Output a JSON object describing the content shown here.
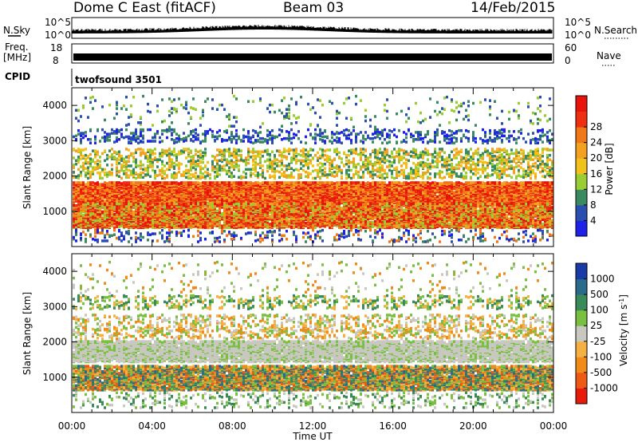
{
  "header": {
    "station": "Dome C East (fitACF)",
    "beam": "Beam 03",
    "date": "14/Feb/2015"
  },
  "panels": {
    "nsky": {
      "label": "N.Sky",
      "ticks_left": [
        "10^5",
        "10^0"
      ],
      "ticks_right": [
        "10^5",
        "10^0"
      ],
      "right_label": "N.Search"
    },
    "freq": {
      "label_top": "Freq.",
      "label_bottom": "[MHz]",
      "ticks_left": [
        "18",
        "8"
      ],
      "ticks_right": [
        "60",
        "0"
      ],
      "right_label": "Nave"
    },
    "cpid": {
      "label": "CPID",
      "value": "twofsound 3501"
    }
  },
  "axes": {
    "xlabel": "Time UT",
    "xticks": [
      "00:00",
      "04:00",
      "08:00",
      "12:00",
      "16:00",
      "20:00",
      "00:00"
    ],
    "ylabel": "Slant Range [km]",
    "yticks": [
      "1000",
      "2000",
      "3000",
      "4000"
    ]
  },
  "chart_data": [
    {
      "type": "heatmap",
      "title": "",
      "ylabel": "Slant Range [km]",
      "xlabel": "",
      "xlim": [
        "00:00",
        "24:00"
      ],
      "ylim": [
        0,
        4500
      ],
      "colorbar": {
        "label": "Power [dB]",
        "ticks": [
          "4",
          "8",
          "12",
          "16",
          "20",
          "24",
          "28"
        ],
        "colors": [
          "#1e22e8",
          "#2a4fb0",
          "#3a8a5f",
          "#9acd32",
          "#f2c21a",
          "#f4a020",
          "#f07818",
          "#ee3010",
          "#e8140c"
        ]
      },
      "bands": [
        {
          "range_km": [
            1300,
            1800
          ],
          "level": "24-28 dB"
        },
        {
          "range_km": [
            600,
            1200
          ],
          "level": "20-28 dB"
        },
        {
          "range_km": [
            2000,
            2800
          ],
          "level": "12-20 dB"
        },
        {
          "range_km": [
            3000,
            3300
          ],
          "level": "4-12 dB"
        }
      ]
    },
    {
      "type": "heatmap",
      "title": "",
      "ylabel": "Slant Range [km]",
      "xlabel": "Time UT",
      "xlim": [
        "00:00",
        "24:00"
      ],
      "ylim": [
        0,
        4500
      ],
      "colorbar": {
        "label": "Velocity [m s^-1]",
        "ticks": [
          "1000",
          "500",
          "100",
          "25",
          "-25",
          "-100",
          "-500",
          "-1000"
        ],
        "colors": [
          "#1a3aa8",
          "#2a6a8a",
          "#3a8a5a",
          "#7ac040",
          "#c8c8c0",
          "#f4b040",
          "#f08a18",
          "#ee5a14",
          "#e81a0c"
        ]
      },
      "bands": [
        {
          "range_km": [
            1500,
            2000
          ],
          "level": "-25 to 25 m/s"
        },
        {
          "range_km": [
            700,
            1300
          ],
          "level": "-500 to 500 m/s"
        },
        {
          "range_km": [
            3000,
            3300
          ],
          "level": "25 to 100 m/s"
        }
      ]
    }
  ]
}
